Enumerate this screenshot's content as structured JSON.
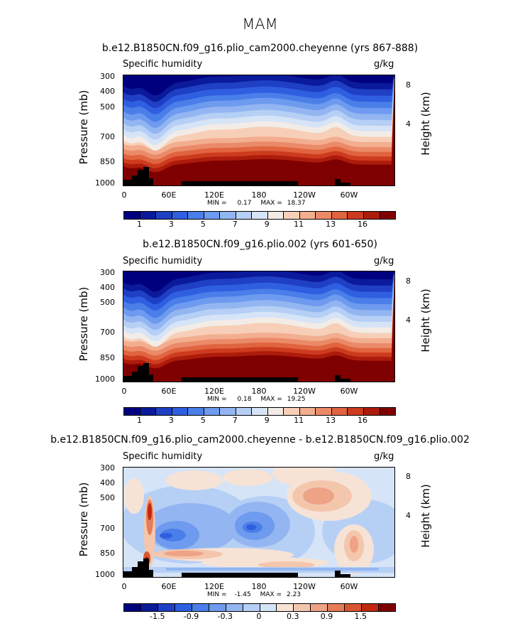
{
  "season": "MAM",
  "colors": {
    "full": [
      "#00007f",
      "#0a1a9a",
      "#1f3fc4",
      "#2f5fe0",
      "#4a7ee9",
      "#6e9bef",
      "#93b6f2",
      "#b6cff5",
      "#d6e4f7",
      "#f3ece6",
      "#f7cfb8",
      "#f2ae8f",
      "#eb8a68",
      "#e0643f",
      "#cd3b1f",
      "#ad1c0b",
      "#7f0000"
    ],
    "diff": [
      "#00007f",
      "#0a1a9a",
      "#1f3fc4",
      "#2f5fe0",
      "#4a7ee9",
      "#6e9bef",
      "#93b6f2",
      "#b6cff5",
      "#d6e4f7",
      "#f6e3d6",
      "#f4c6ac",
      "#eea386",
      "#e57c5a",
      "#d9552f",
      "#c1280f",
      "#7f0000"
    ]
  },
  "chart_data": [
    {
      "type": "heatmap",
      "title": "b.e12.B1850CN.f09_g16.plio_cam2000.cheyenne (yrs 867-888)",
      "variable": "Specific humidity",
      "units": "g/kg",
      "ylabel": "Pressure (mb)",
      "ylabel_right": "Height (km)",
      "y_ticks": [
        "300",
        "400",
        "500",
        "700",
        "850",
        "1000"
      ],
      "height_ticks": [
        "8",
        "4"
      ],
      "x_ticks": [
        "0",
        "60E",
        "120E",
        "180",
        "120W",
        "60W"
      ],
      "xlim": [
        0,
        360
      ],
      "ylim": [
        1000,
        300
      ],
      "min": "0.17",
      "max": "18.37",
      "min_label": "MIN =",
      "max_label": "MAX =",
      "colorbar_labels": [
        "1",
        "3",
        "5",
        "7",
        "9",
        "11",
        "13",
        "16"
      ],
      "colorbar_bins": 17
    },
    {
      "type": "heatmap",
      "title": "b.e12.B1850CN.f09_g16.plio.002 (yrs 601-650)",
      "variable": "Specific humidity",
      "units": "g/kg",
      "ylabel": "Pressure (mb)",
      "ylabel_right": "Height (km)",
      "y_ticks": [
        "300",
        "400",
        "500",
        "700",
        "850",
        "1000"
      ],
      "height_ticks": [
        "8",
        "4"
      ],
      "x_ticks": [
        "0",
        "60E",
        "120E",
        "180",
        "120W",
        "60W"
      ],
      "xlim": [
        0,
        360
      ],
      "ylim": [
        1000,
        300
      ],
      "min": "0.18",
      "max": "19.25",
      "min_label": "MIN =",
      "max_label": "MAX =",
      "colorbar_labels": [
        "1",
        "3",
        "5",
        "7",
        "9",
        "11",
        "13",
        "16"
      ],
      "colorbar_bins": 17
    },
    {
      "type": "heatmap",
      "title": "b.e12.B1850CN.f09_g16.plio_cam2000.cheyenne - b.e12.B1850CN.f09_g16.plio.002",
      "variable": "Specific humidity",
      "units": "g/kg",
      "ylabel": "Pressure (mb)",
      "ylabel_right": "Height (km)",
      "y_ticks": [
        "300",
        "400",
        "500",
        "700",
        "850",
        "1000"
      ],
      "height_ticks": [
        "8",
        "4"
      ],
      "x_ticks": [
        "0",
        "60E",
        "120E",
        "180",
        "120W",
        "60W"
      ],
      "xlim": [
        0,
        360
      ],
      "ylim": [
        1000,
        300
      ],
      "min": "-1.45",
      "max": "2.23",
      "min_label": "MIN =",
      "max_label": "MAX =",
      "colorbar_labels": [
        "-1.5",
        "-0.9",
        "-0.3",
        "0",
        "0.3",
        "0.9",
        "1.5"
      ],
      "colorbar_bins": 16
    }
  ]
}
